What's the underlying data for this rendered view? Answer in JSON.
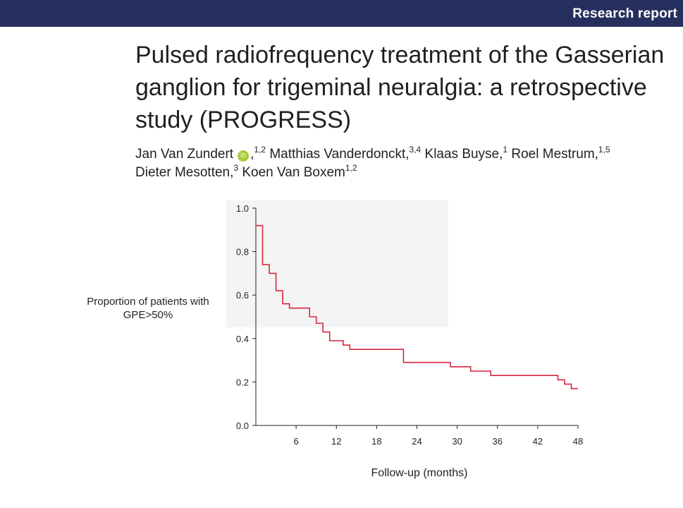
{
  "header": {
    "section_label": "Research report",
    "band_color": "#25305e"
  },
  "article": {
    "title": "Pulsed radiofrequency treatment of the Gasserian ganglion for trigeminal neuralgia: a retrospective study (PROGRESS)",
    "orcid_icon": "orcid-icon",
    "orcid_color": "#a6ce39",
    "authors": [
      {
        "name": "Jan Van Zundert",
        "affil": "1,2",
        "orcid": true
      },
      {
        "name": "Matthias Vanderdonckt",
        "affil": "3,4"
      },
      {
        "name": "Klaas Buyse",
        "affil": "1"
      },
      {
        "name": "Roel Mestrum",
        "affil": "1,5"
      },
      {
        "name": "Dieter Mesotten",
        "affil": "3"
      },
      {
        "name": "Koen Van Boxem",
        "affil": "1,2"
      }
    ]
  },
  "chart_data": {
    "type": "line",
    "subtype": "kaplan-meier step",
    "title": "",
    "xlabel": "Follow-up (months)",
    "ylabel": "Proportion of patients with GPE>50%",
    "xlim": [
      0,
      48
    ],
    "ylim": [
      0,
      1.0
    ],
    "xticks": [
      6,
      12,
      18,
      24,
      30,
      36,
      42,
      48
    ],
    "yticks": [
      "0.0",
      "0.2",
      "0.4",
      "0.6",
      "0.8",
      "1.0"
    ],
    "grid": false,
    "line_color": "#d6263e",
    "series": [
      {
        "x": [
          0,
          1,
          2,
          3,
          4,
          5,
          8,
          9,
          10,
          11,
          13,
          14,
          22,
          29,
          32,
          35,
          45,
          46,
          47,
          48
        ],
        "y": [
          0.92,
          0.74,
          0.7,
          0.62,
          0.56,
          0.54,
          0.5,
          0.47,
          0.43,
          0.39,
          0.37,
          0.35,
          0.29,
          0.27,
          0.25,
          0.23,
          0.21,
          0.19,
          0.17,
          0.17
        ]
      }
    ]
  }
}
